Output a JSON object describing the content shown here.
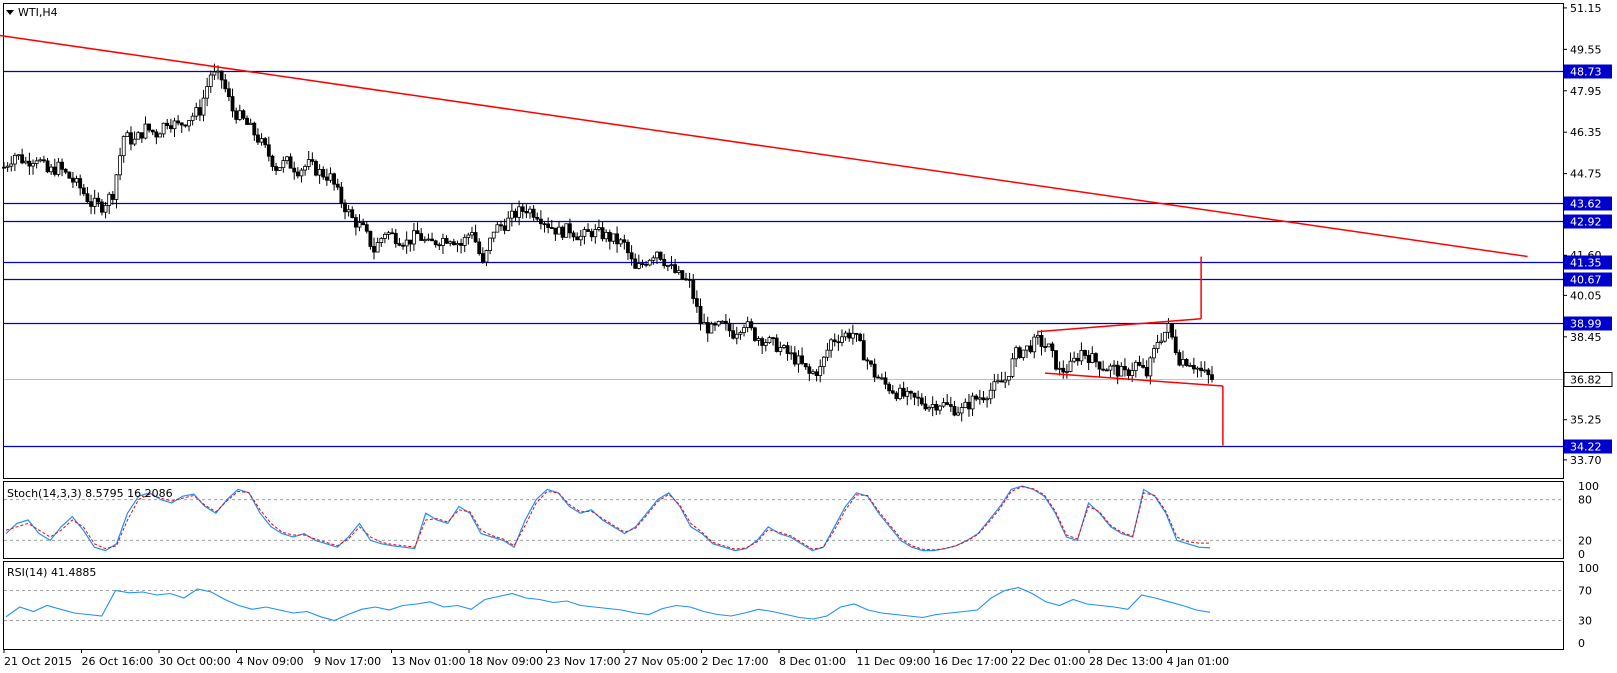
{
  "window": {
    "symbol_title": "WTI,H4"
  },
  "colors": {
    "background": "#ffffff",
    "hline": "#0000cc",
    "trendline": "#ff0000",
    "candle": "#000000",
    "stoch_main": "#1e90ff",
    "stoch_signal": "#ff0000",
    "rsi": "#1e90ff",
    "level_dots": "#a0a0a0",
    "current_price_line": "#c0c0c0"
  },
  "indicators": {
    "stoch_label": "Stoch(14,3,3) 8.5795 16.2086",
    "rsi_label": "RSI(14) 41.4885"
  },
  "chart_data": {
    "type": "candlestick",
    "price_axis": {
      "ylim": [
        33.0,
        51.3
      ],
      "ticks": [
        "51.15",
        "49.55",
        "47.95",
        "46.35",
        "44.75",
        "41.60",
        "40.05",
        "38.45",
        "35.25",
        "33.70"
      ]
    },
    "time_axis": {
      "labels": [
        "21 Oct 2015",
        "26 Oct 16:00",
        "30 Oct 00:00",
        "4 Nov 09:00",
        "9 Nov 17:00",
        "13 Nov 01:00",
        "18 Nov 09:00",
        "23 Nov 17:00",
        "27 Nov 05:00",
        "2 Dec 17:00",
        "8 Dec 01:00",
        "11 Dec 09:00",
        "16 Dec 17:00",
        "22 Dec 01:00",
        "28 Dec 13:00",
        "4 Jan 01:00"
      ]
    },
    "horizontal_levels": [
      "48.73",
      "43.62",
      "42.92",
      "41.35",
      "40.67",
      "38.99",
      "34.22"
    ],
    "current_price": "36.82",
    "price_path": [
      {
        "x": 0,
        "y": 45.0
      },
      {
        "x": 3,
        "y": 45.5
      },
      {
        "x": 6,
        "y": 45.2
      },
      {
        "x": 9,
        "y": 45.4
      },
      {
        "x": 12,
        "y": 44.8
      },
      {
        "x": 15,
        "y": 45.0
      },
      {
        "x": 18,
        "y": 44.6
      },
      {
        "x": 21,
        "y": 44.2
      },
      {
        "x": 24,
        "y": 43.6
      },
      {
        "x": 27,
        "y": 43.5
      },
      {
        "x": 30,
        "y": 44.0
      },
      {
        "x": 33,
        "y": 46.2
      },
      {
        "x": 36,
        "y": 46.0
      },
      {
        "x": 39,
        "y": 46.5
      },
      {
        "x": 42,
        "y": 46.3
      },
      {
        "x": 45,
        "y": 46.8
      },
      {
        "x": 48,
        "y": 46.6
      },
      {
        "x": 51,
        "y": 46.9
      },
      {
        "x": 54,
        "y": 47.2
      },
      {
        "x": 57,
        "y": 48.6
      },
      {
        "x": 60,
        "y": 48.4
      },
      {
        "x": 63,
        "y": 47.2
      },
      {
        "x": 66,
        "y": 46.8
      },
      {
        "x": 69,
        "y": 46.3
      },
      {
        "x": 72,
        "y": 45.7
      },
      {
        "x": 75,
        "y": 45.0
      },
      {
        "x": 78,
        "y": 45.2
      },
      {
        "x": 81,
        "y": 44.9
      },
      {
        "x": 84,
        "y": 45.1
      },
      {
        "x": 87,
        "y": 44.8
      },
      {
        "x": 90,
        "y": 44.6
      },
      {
        "x": 93,
        "y": 43.7
      },
      {
        "x": 96,
        "y": 43.0
      },
      {
        "x": 99,
        "y": 42.6
      },
      {
        "x": 102,
        "y": 41.8
      },
      {
        "x": 105,
        "y": 42.5
      },
      {
        "x": 108,
        "y": 42.3
      },
      {
        "x": 111,
        "y": 42.1
      },
      {
        "x": 114,
        "y": 42.4
      },
      {
        "x": 117,
        "y": 42.0
      },
      {
        "x": 120,
        "y": 42.2
      },
      {
        "x": 123,
        "y": 42.3
      },
      {
        "x": 126,
        "y": 42.0
      },
      {
        "x": 129,
        "y": 42.6
      },
      {
        "x": 132,
        "y": 41.2
      },
      {
        "x": 135,
        "y": 42.6
      },
      {
        "x": 138,
        "y": 42.8
      },
      {
        "x": 141,
        "y": 43.2
      },
      {
        "x": 144,
        "y": 43.4
      },
      {
        "x": 147,
        "y": 43.2
      },
      {
        "x": 150,
        "y": 42.8
      },
      {
        "x": 153,
        "y": 42.5
      },
      {
        "x": 156,
        "y": 42.6
      },
      {
        "x": 159,
        "y": 42.3
      },
      {
        "x": 162,
        "y": 42.5
      },
      {
        "x": 165,
        "y": 42.4
      },
      {
        "x": 168,
        "y": 42.2
      },
      {
        "x": 171,
        "y": 42.0
      },
      {
        "x": 174,
        "y": 41.0
      },
      {
        "x": 177,
        "y": 41.4
      },
      {
        "x": 180,
        "y": 41.8
      },
      {
        "x": 183,
        "y": 41.2
      },
      {
        "x": 186,
        "y": 40.8
      },
      {
        "x": 189,
        "y": 40.5
      },
      {
        "x": 192,
        "y": 39.0
      },
      {
        "x": 195,
        "y": 38.7
      },
      {
        "x": 198,
        "y": 38.9
      },
      {
        "x": 201,
        "y": 38.6
      },
      {
        "x": 204,
        "y": 39.0
      },
      {
        "x": 207,
        "y": 38.5
      },
      {
        "x": 210,
        "y": 38.3
      },
      {
        "x": 213,
        "y": 38.1
      },
      {
        "x": 216,
        "y": 37.8
      },
      {
        "x": 219,
        "y": 37.5
      },
      {
        "x": 222,
        "y": 37.0
      },
      {
        "x": 225,
        "y": 37.2
      },
      {
        "x": 228,
        "y": 38.3
      },
      {
        "x": 231,
        "y": 38.5
      },
      {
        "x": 234,
        "y": 38.6
      },
      {
        "x": 237,
        "y": 37.8
      },
      {
        "x": 240,
        "y": 37.0
      },
      {
        "x": 243,
        "y": 36.6
      },
      {
        "x": 246,
        "y": 36.3
      },
      {
        "x": 249,
        "y": 36.1
      },
      {
        "x": 252,
        "y": 36.0
      },
      {
        "x": 255,
        "y": 35.8
      },
      {
        "x": 258,
        "y": 35.9
      },
      {
        "x": 261,
        "y": 35.7
      },
      {
        "x": 264,
        "y": 35.6
      },
      {
        "x": 267,
        "y": 36.0
      },
      {
        "x": 270,
        "y": 36.2
      },
      {
        "x": 273,
        "y": 36.5
      },
      {
        "x": 276,
        "y": 36.8
      },
      {
        "x": 279,
        "y": 37.8
      },
      {
        "x": 282,
        "y": 38.0
      },
      {
        "x": 285,
        "y": 38.3
      },
      {
        "x": 288,
        "y": 38.0
      },
      {
        "x": 291,
        "y": 37.1
      },
      {
        "x": 294,
        "y": 37.3
      },
      {
        "x": 297,
        "y": 37.9
      },
      {
        "x": 300,
        "y": 37.6
      },
      {
        "x": 303,
        "y": 37.3
      },
      {
        "x": 306,
        "y": 37.2
      },
      {
        "x": 309,
        "y": 37.0
      },
      {
        "x": 312,
        "y": 37.4
      },
      {
        "x": 315,
        "y": 37.0
      },
      {
        "x": 318,
        "y": 38.3
      },
      {
        "x": 321,
        "y": 38.8
      },
      {
        "x": 324,
        "y": 37.6
      },
      {
        "x": 327,
        "y": 37.5
      },
      {
        "x": 330,
        "y": 37.1
      },
      {
        "x": 333,
        "y": 36.82
      }
    ],
    "stochastic": {
      "levels": [
        "100",
        "80",
        "20",
        "0"
      ],
      "main": [
        30,
        45,
        50,
        30,
        20,
        40,
        55,
        35,
        10,
        5,
        15,
        60,
        85,
        90,
        80,
        75,
        85,
        88,
        70,
        60,
        80,
        95,
        90,
        60,
        40,
        30,
        25,
        30,
        20,
        15,
        10,
        25,
        45,
        20,
        15,
        12,
        10,
        8,
        60,
        50,
        45,
        70,
        60,
        30,
        25,
        20,
        10,
        50,
        80,
        95,
        90,
        70,
        60,
        65,
        50,
        40,
        30,
        40,
        60,
        80,
        90,
        70,
        40,
        30,
        15,
        10,
        5,
        8,
        20,
        40,
        30,
        25,
        15,
        5,
        10,
        40,
        70,
        90,
        85,
        60,
        40,
        20,
        10,
        5,
        5,
        8,
        12,
        20,
        30,
        50,
        70,
        95,
        100,
        95,
        85,
        60,
        25,
        20,
        75,
        60,
        40,
        30,
        25,
        95,
        85,
        60,
        20,
        15,
        10,
        9
      ],
      "signal": [
        35,
        40,
        45,
        35,
        25,
        35,
        50,
        40,
        15,
        8,
        12,
        50,
        80,
        88,
        82,
        78,
        82,
        86,
        72,
        62,
        78,
        92,
        90,
        65,
        45,
        32,
        28,
        28,
        22,
        17,
        12,
        22,
        40,
        25,
        17,
        14,
        12,
        10,
        50,
        52,
        47,
        65,
        62,
        35,
        27,
        22,
        12,
        42,
        75,
        92,
        90,
        73,
        62,
        63,
        52,
        42,
        32,
        38,
        57,
        77,
        88,
        72,
        45,
        32,
        17,
        12,
        7,
        9,
        18,
        36,
        32,
        27,
        17,
        7,
        10,
        35,
        65,
        87,
        86,
        63,
        43,
        23,
        12,
        7,
        6,
        8,
        12,
        19,
        29,
        47,
        67,
        92,
        99,
        96,
        87,
        63,
        28,
        22,
        70,
        62,
        42,
        32,
        26,
        90,
        86,
        63,
        25,
        18,
        16,
        16
      ]
    },
    "rsi": {
      "levels": [
        "100",
        "70",
        "30",
        "0"
      ],
      "values": [
        35,
        48,
        42,
        50,
        45,
        40,
        38,
        36,
        70,
        67,
        68,
        64,
        66,
        60,
        72,
        68,
        58,
        50,
        45,
        48,
        44,
        40,
        42,
        35,
        30,
        38,
        45,
        48,
        44,
        50,
        52,
        55,
        48,
        50,
        45,
        58,
        62,
        66,
        60,
        58,
        54,
        56,
        50,
        48,
        46,
        44,
        40,
        38,
        46,
        50,
        48,
        42,
        38,
        36,
        40,
        45,
        42,
        38,
        34,
        32,
        36,
        48,
        52,
        44,
        40,
        38,
        36,
        34,
        38,
        40,
        42,
        44,
        60,
        70,
        74,
        66,
        55,
        50,
        58,
        52,
        50,
        48,
        45,
        64,
        60,
        55,
        50,
        44,
        41
      ]
    }
  }
}
